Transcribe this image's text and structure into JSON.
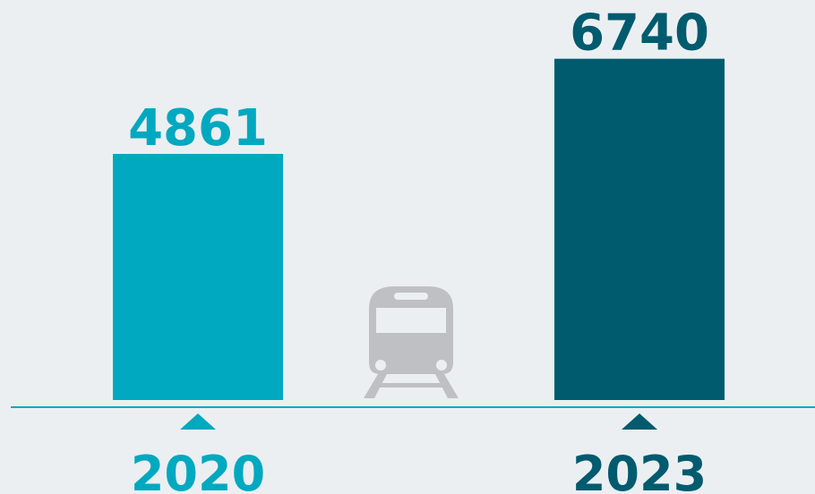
{
  "chart_data": {
    "type": "bar",
    "categories": [
      "2020",
      "2023"
    ],
    "values": [
      4861,
      6740
    ],
    "colors": [
      "#00a9bf",
      "#005b6e"
    ],
    "ylim": [
      0,
      7600
    ]
  }
}
